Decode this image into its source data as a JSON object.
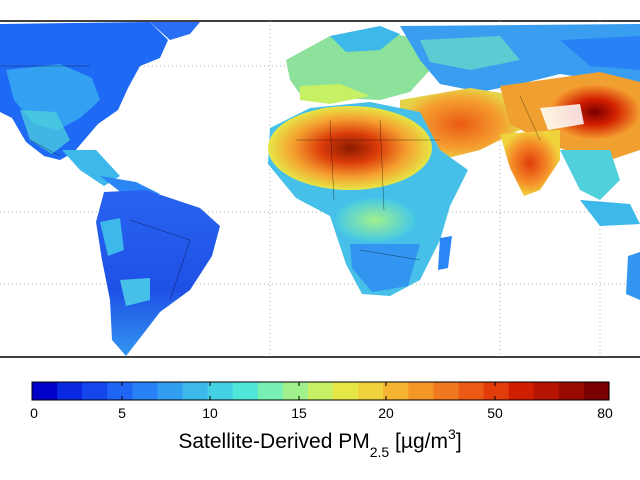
{
  "map": {
    "colorbar_colors": [
      "#0000c8",
      "#0a28e0",
      "#1446ee",
      "#1e64f5",
      "#2882f5",
      "#329ef0",
      "#3cb8ea",
      "#46d0e4",
      "#50e6d8",
      "#78f0b4",
      "#a0f08c",
      "#c8f064",
      "#e6e646",
      "#f0d23c",
      "#f5b432",
      "#f59628",
      "#f0781e",
      "#eb5a14",
      "#e13c0a",
      "#d21e00",
      "#b41400",
      "#960a00",
      "#780000"
    ],
    "tick_labels": [
      "0",
      "5",
      "10",
      "15",
      "20",
      "50",
      "80"
    ],
    "title_main": "Satellite-Derived PM",
    "title_sub": "2.5",
    "title_unit_open": " [",
    "title_unit_mu": "µ",
    "title_unit_g": "g/m",
    "title_unit_sup": "3",
    "title_unit_close": "]"
  }
}
